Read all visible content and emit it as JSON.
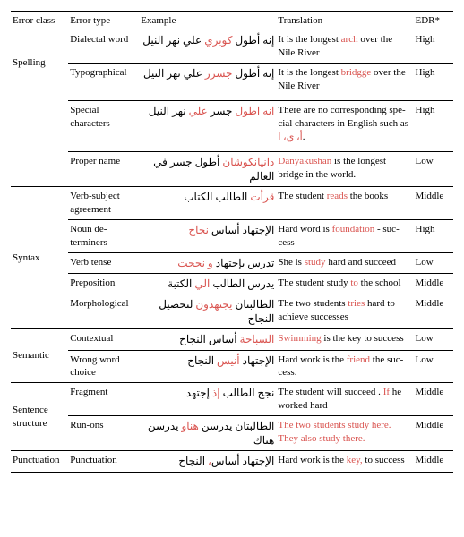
{
  "headers": {
    "class": "Error class",
    "type": "Error type",
    "example": "Example",
    "translation": "Translation",
    "edr": "EDR*"
  },
  "rows": {
    "spell1": {
      "class": "Spelling",
      "type": "Dialectal word",
      "ex_pre": "إنه أطول ",
      "ex_err": "كوبري",
      "ex_post": " علي نهر النيل",
      "tr_pre": "It is the longest ",
      "tr_err": "arch",
      "tr_post": " over the Nile River",
      "edr": "High"
    },
    "spell2": {
      "type": "Typograph­ical",
      "ex_pre": "إنه أطول ",
      "ex_err": "جسرر",
      "ex_post": " علي نهر النيل",
      "tr_pre": "It is the longest ",
      "tr_err": "bridgge",
      "tr_post": " over the Nile River",
      "edr": "High"
    },
    "spell3": {
      "type": "Special characters",
      "ex_pre": "",
      "ex_err": "انه اطول",
      "ex_post": " جسر ",
      "ex_err2": "علي",
      "ex_post2": " نهر النيل",
      "tr_pre": "There are no corresponding spe­cial characters in English such as ",
      "tr_err": "أ، ي، ا",
      "tr_post": ".",
      "edr": "High"
    },
    "spell4": {
      "type": "Proper name",
      "ex_pre": "",
      "ex_err": "دانيانكوشان",
      "ex_post": " أطول جسر في العالم",
      "tr_pre": "",
      "tr_err": "Danyakushan",
      "tr_post": " is the longest bridge in the world.",
      "edr": "Low"
    },
    "syn1": {
      "class": "Syntax",
      "type": "Verb-subject agreement",
      "ex_pre": "",
      "ex_err": "قرأت",
      "ex_post": " الطالب الكتاب",
      "tr_pre": "The student ",
      "tr_err": "reads",
      "tr_post": " the books",
      "edr": "Middle"
    },
    "syn2": {
      "type": "Noun de­terminers",
      "ex_pre": "الإجتهاد أساس ",
      "ex_err": "نجاح",
      "ex_post": "",
      "tr_pre": "Hard word is ",
      "tr_err": "foundation",
      "tr_post": " - suc­cess",
      "edr": "High"
    },
    "syn3": {
      "type": "Verb tense",
      "ex_pre": "تدرس بإجتهاد ",
      "ex_err": "و نجحت",
      "ex_post": "",
      "tr_pre": "She is ",
      "tr_err": "study",
      "tr_post": " hard and succeed",
      "edr": "Low"
    },
    "syn4": {
      "type": "Preposition",
      "ex_pre": "يدرس الطالب ",
      "ex_err": "الي",
      "ex_post": " الكتبة",
      "tr_pre": "The student study ",
      "tr_err": "to",
      "tr_post": " the school",
      "edr": "Middle"
    },
    "syn5": {
      "type": "Morpholog­ical",
      "ex_pre": "الطالبتان ",
      "ex_err": "يجتهدون",
      "ex_post": " لتحصيل النجاح",
      "tr_pre": "The two students ",
      "tr_err": "tries",
      "tr_post": " hard to achieve successes",
      "edr": "Middle"
    },
    "sem1": {
      "class": "Semantic",
      "type": "Contextual",
      "ex_pre": "",
      "ex_err": "السباحة",
      "ex_post": " أساس النجاح",
      "tr_pre": "",
      "tr_err": "Swimming",
      "tr_post": " is the key to success",
      "edr": "Low"
    },
    "sem2": {
      "type": "Wrong word choice",
      "ex_pre": "الإجتهاد ",
      "ex_err": "أنيس",
      "ex_post": " النجاح",
      "tr_pre": "Hard work is the ",
      "tr_err": "friend",
      "tr_post": " the suc­cess.",
      "edr": "Low"
    },
    "sen1": {
      "class": "Sentence structure",
      "type": "Fragment",
      "ex_pre": "نجح الطالب ",
      "ex_err": "إذ",
      "ex_post": " إجتهد",
      "tr_pre": "The student will succeed . ",
      "tr_err": "If",
      "tr_post": " he worked hard",
      "edr": "Middle"
    },
    "sen2": {
      "type": "Run-ons",
      "ex_pre": "الطالبتان يدرسن ",
      "ex_err": "هناو",
      "ex_post": " يدرسن هناك",
      "tr_pre": "",
      "tr_err": "The two students study here. They also study there.",
      "tr_post": "",
      "edr": "Middle"
    },
    "pun1": {
      "class": "Punctuation",
      "type": "Punctuation",
      "ex_pre": "الإجتهاد أساس",
      "ex_err": "،",
      "ex_post": " النجاح",
      "tr_pre": "Hard work is the ",
      "tr_err": "key,",
      "tr_post": " to success",
      "edr": "Middle"
    }
  }
}
